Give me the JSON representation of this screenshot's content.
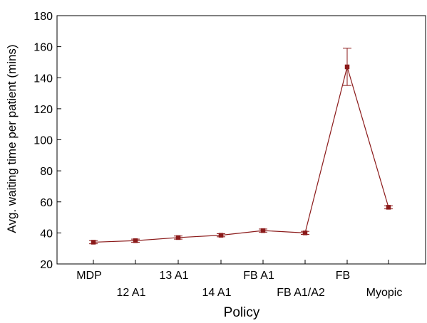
{
  "chart_data": {
    "type": "line",
    "title": "",
    "xlabel": "Policy",
    "ylabel": "Avg. waiting time per patient (mins)",
    "categories": [
      "MDP",
      "12 A1",
      "13 A1",
      "14 A1",
      "FB A1",
      "FB A1/A2",
      "FB",
      "Myopic"
    ],
    "series": [
      {
        "values": [
          34,
          35,
          37,
          38.5,
          41.5,
          40,
          147,
          56.5
        ],
        "error_low": [
          33,
          34,
          36,
          37.5,
          40.5,
          39,
          135,
          55.5
        ],
        "error_high": [
          35,
          36,
          38,
          39.5,
          42.5,
          41,
          159,
          57.5
        ]
      }
    ],
    "ylim": [
      20,
      180
    ],
    "yticks": [
      20,
      40,
      60,
      80,
      100,
      120,
      140,
      160,
      180
    ],
    "grid": false,
    "legend": "none",
    "colors": {
      "series": "#8b1a1a",
      "axis": "#000000",
      "background": "#ffffff"
    }
  }
}
